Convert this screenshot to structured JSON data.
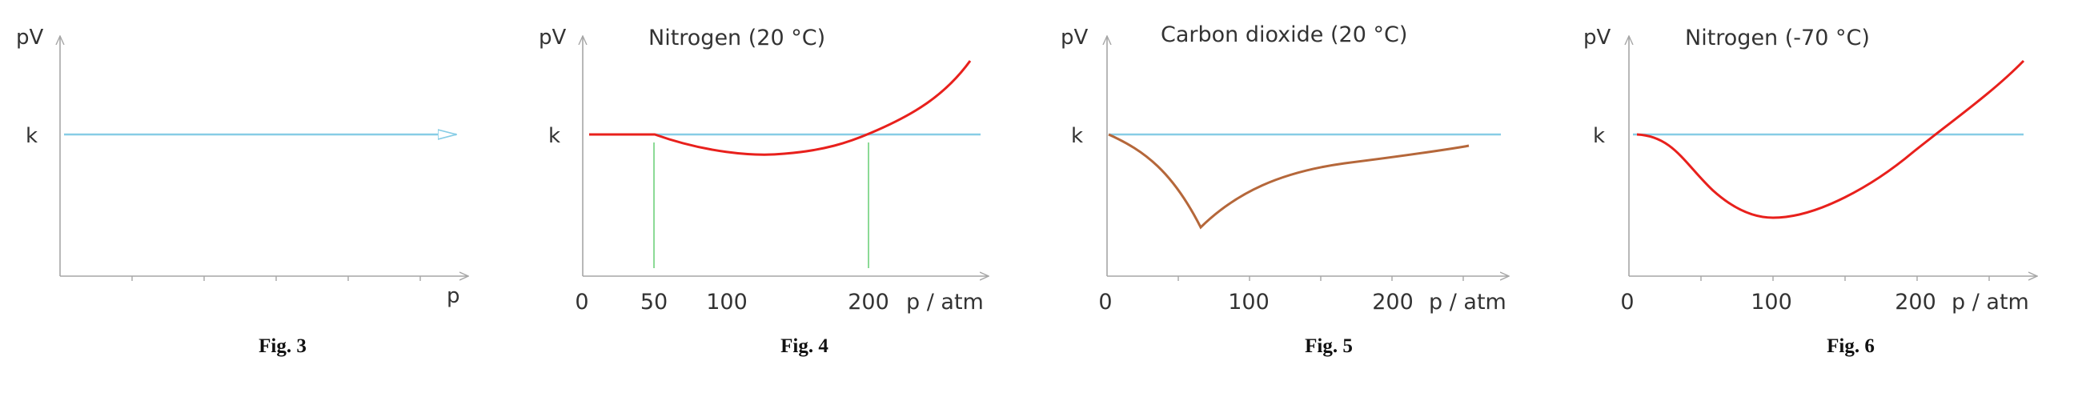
{
  "figures": [
    {
      "caption": "Fig. 3",
      "title": "",
      "ylabel": "pV",
      "xlabel": "p",
      "k_label": "k",
      "x_tick_labels": [],
      "colors": {
        "axis": "#a6a6a6",
        "reference": "#87cde6",
        "curve": ""
      }
    },
    {
      "caption": "Fig. 4",
      "title": "Nitrogen (20 °C)",
      "ylabel": "pV",
      "xlabel": "p / atm",
      "k_label": "k",
      "x_tick_labels": [
        "0",
        "50",
        "100",
        "200"
      ],
      "colors": {
        "axis": "#a6a6a6",
        "reference": "#87cde6",
        "curve": "#e8201c",
        "markers": "#7fd68a"
      }
    },
    {
      "caption": "Fig. 5",
      "title": "Carbon dioxide (20 °C)",
      "ylabel": "pV",
      "xlabel": "p / atm",
      "k_label": "k",
      "x_tick_labels": [
        "0",
        "100",
        "200"
      ],
      "colors": {
        "axis": "#a6a6a6",
        "reference": "#87cde6",
        "curve": "#b5673a"
      }
    },
    {
      "caption": "Fig. 6",
      "title": "Nitrogen (-70 °C)",
      "ylabel": "pV",
      "xlabel": "p / atm",
      "k_label": "k",
      "x_tick_labels": [
        "0",
        "100",
        "200"
      ],
      "colors": {
        "axis": "#a6a6a6",
        "reference": "#87cde6",
        "curve": "#e8201c"
      }
    }
  ]
}
